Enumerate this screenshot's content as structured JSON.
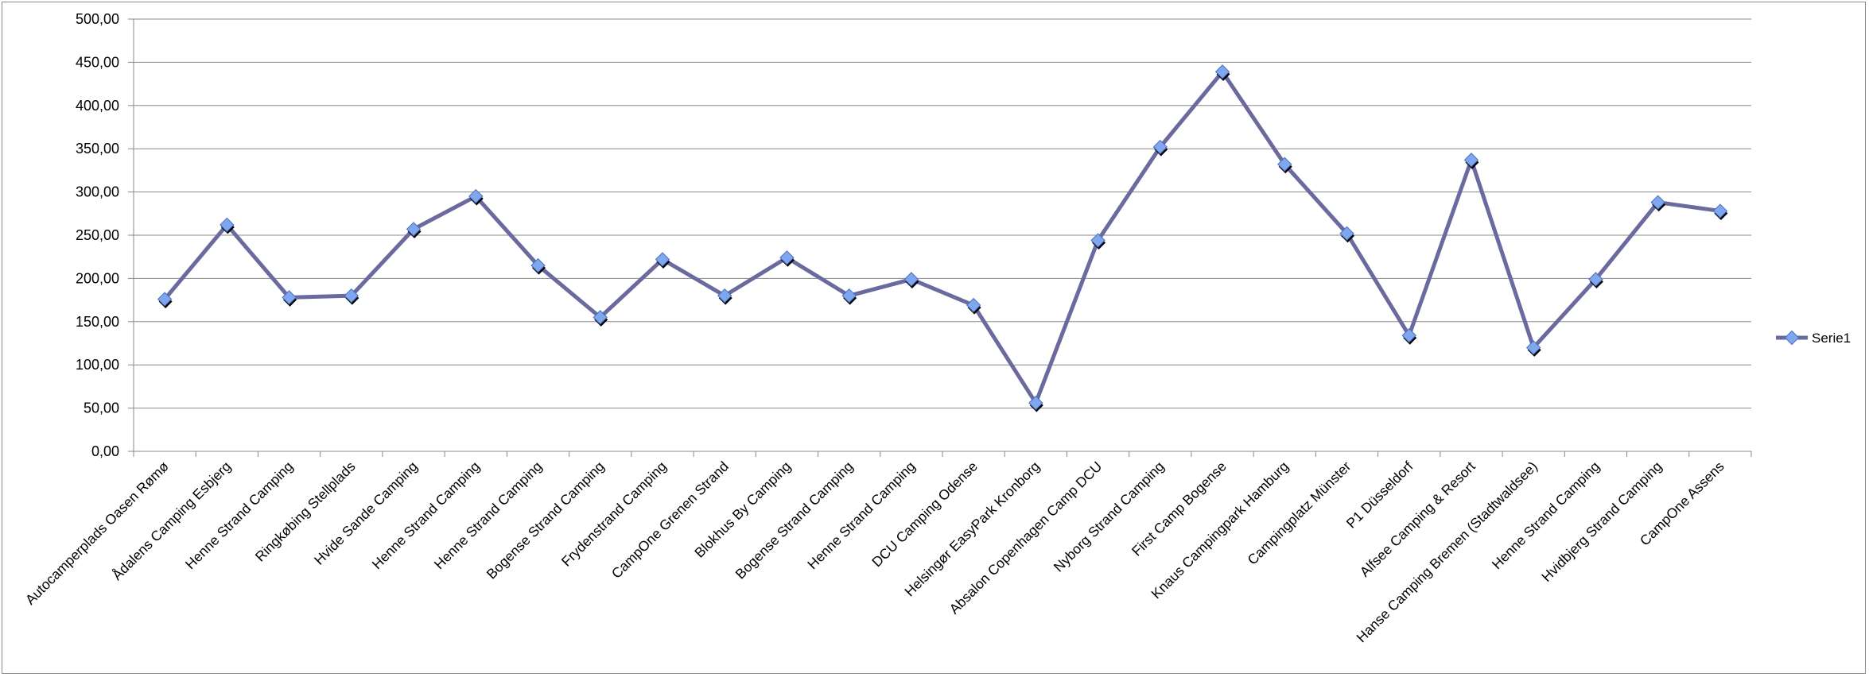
{
  "chart_data": {
    "type": "line",
    "title": "",
    "xlabel": "",
    "ylabel": "",
    "ylim": [
      0,
      500
    ],
    "ytick_step": 50,
    "ytick_labels": [
      "0,00",
      "50,00",
      "100,00",
      "150,00",
      "200,00",
      "250,00",
      "300,00",
      "350,00",
      "400,00",
      "450,00",
      "500,00"
    ],
    "grid": "horizontal",
    "legend_position": "right",
    "categories": [
      "Autocamperplads Oasen Rømø",
      "Ådalens Camping Esbjerg",
      "Henne Strand Camping",
      "Ringkøbing Stellplads",
      "Hvide Sande Camping",
      "Henne Strand Camping",
      "Henne Strand Camping",
      "Bogense Strand Camping",
      "Frydenstrand Camping",
      "CampOne Grenen Strand",
      "Blokhus By Camping",
      "Bogense Strand Camping",
      "Henne Strand Camping",
      "DCU Camping Odense",
      "Helsingør EasyPark Kronborg",
      "Absalon Copenhagen Camp DCU",
      "Nyborg Strand Camping",
      "First Camp Bogense",
      "Knaus Campingpark Hamburg",
      "Campingplatz Münster",
      "P1 Düsseldorf",
      "Alfsee Camping & Resort",
      "Hanse Camping Bremen (Stadtwaldsee)",
      "Henne Strand Camping",
      "Hvidbjerg Strand Camping",
      "CampOne Assens"
    ],
    "series": [
      {
        "name": "Serie1",
        "color": "#6a6a9e",
        "marker_color": "#7fa7ef",
        "values": [
          176,
          262,
          178,
          180,
          257,
          295,
          215,
          155,
          222,
          180,
          224,
          180,
          199,
          169,
          56,
          244,
          352,
          439,
          332,
          252,
          134,
          337,
          120,
          199,
          288,
          278
        ]
      }
    ]
  }
}
